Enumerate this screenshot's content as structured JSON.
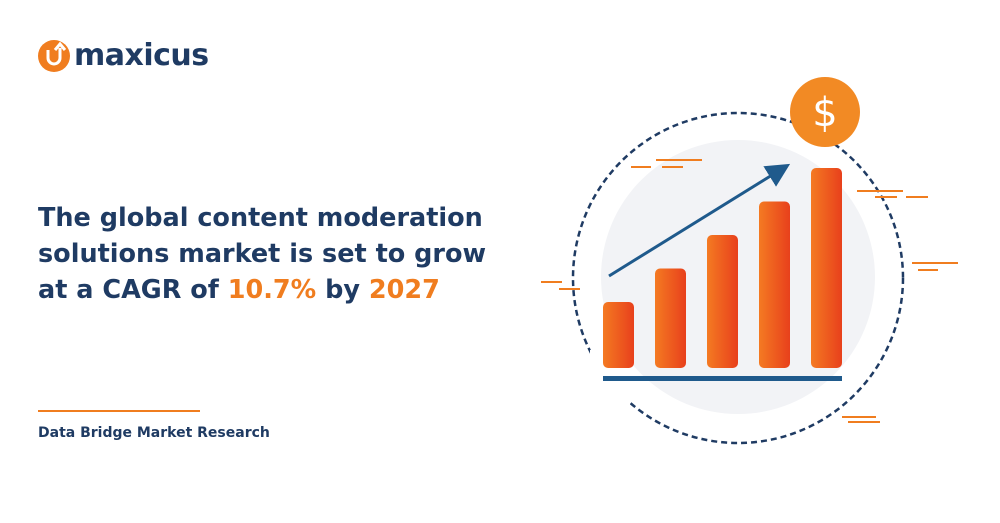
{
  "brand": {
    "name": "maxicus"
  },
  "headline": {
    "line1": "The global content moderation",
    "line2": "solutions market is set to grow",
    "line3_prefix": "at a CAGR of ",
    "cagr": "10.7%",
    "line3_mid": " by ",
    "year": "2027"
  },
  "source": "Data Bridge Market Research",
  "illustration": {
    "currency_symbol": "$",
    "bar_levels": [
      1,
      2,
      3,
      4,
      5
    ]
  },
  "colors": {
    "navy": "#1f3b63",
    "orange": "#f07d1f",
    "red": "#e8401c"
  }
}
